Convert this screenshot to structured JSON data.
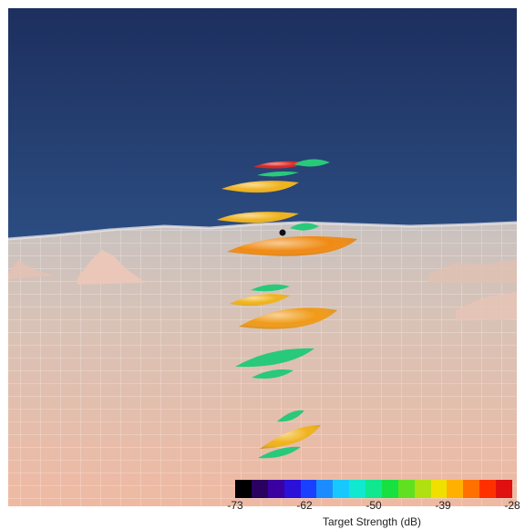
{
  "scene": {
    "description_icon": "sonar-3d-visualization",
    "sky_color": "#1f3a6b",
    "seafloor_color": "#d9b8a6",
    "fish_targets": [
      {
        "color": "#d8231f"
      },
      {
        "color": "#29c97a"
      },
      {
        "color": "#f0b21a"
      },
      {
        "color": "#f0b21a"
      },
      {
        "color": "#29c97a"
      },
      {
        "color": "#f08a12"
      },
      {
        "color": "#f0b21a"
      },
      {
        "color": "#29c97a"
      },
      {
        "color": "#f09a16"
      },
      {
        "color": "#29c97a"
      },
      {
        "color": "#29c97a"
      },
      {
        "color": "#29c97a"
      },
      {
        "color": "#f0b21a"
      },
      {
        "color": "#29c97a"
      }
    ]
  },
  "colorbar": {
    "label": "Target Strength (dB)",
    "ticks": [
      "-73",
      "-62",
      "-50",
      "-39",
      "-28"
    ],
    "colors": [
      "#000000",
      "#2a0060",
      "#3a00a0",
      "#2a10d8",
      "#1a40ff",
      "#1a8cff",
      "#17c8ff",
      "#10e8d0",
      "#10e890",
      "#18e040",
      "#60e020",
      "#b0e010",
      "#f0e000",
      "#ffb000",
      "#ff7000",
      "#ff3000",
      "#e01010"
    ]
  }
}
